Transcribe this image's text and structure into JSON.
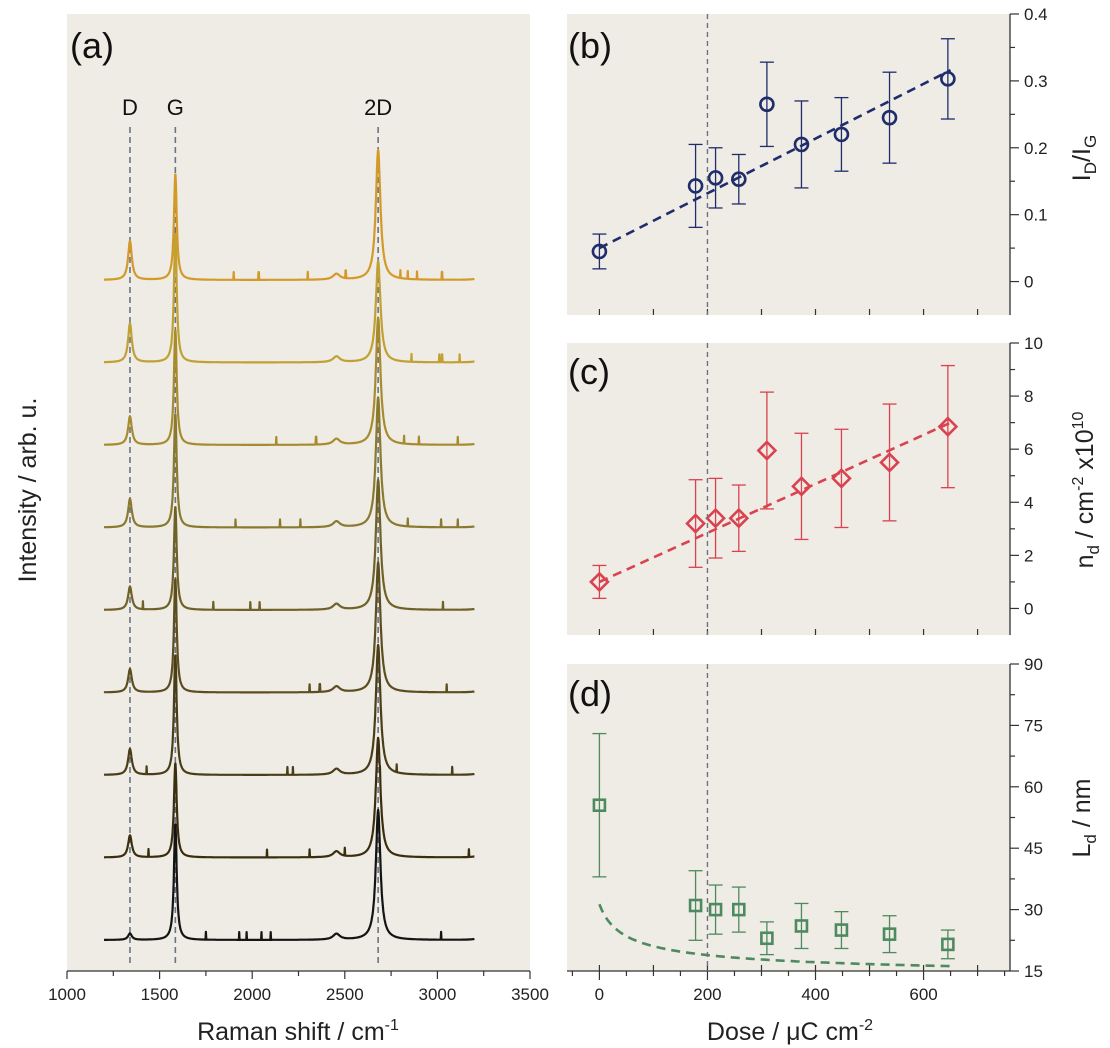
{
  "colors": {
    "panel_background": "#efebe5",
    "b_series": "#1f2d6b",
    "c_series": "#d9434f",
    "d_series": "#4e8a5f",
    "guide_line": "#6a7482"
  },
  "chart_data": [
    {
      "panel": "(a)",
      "type": "line",
      "xlabel": "Raman shift / cm",
      "xlabel_sup": "-1",
      "ylabel": "Intensity / arb. u.",
      "xlim": [
        1000,
        3500
      ],
      "xticks": [
        "1000",
        "1500",
        "2000",
        "2500",
        "3000",
        "3500"
      ],
      "x_range_data": [
        1200,
        3200
      ],
      "peak_labels": [
        {
          "text": "D",
          "x": 1340
        },
        {
          "text": "G",
          "x": 1585
        },
        {
          "text": "2D",
          "x": 2680
        }
      ],
      "stacked": true,
      "series": [
        {
          "color": "#d39a2a",
          "D": 0.3,
          "G": 0.82,
          "twoD": 1.0,
          "spikes": [
            1900,
            2035,
            2300,
            2505,
            2800,
            2840,
            2890,
            3025
          ]
        },
        {
          "color": "#c1a034",
          "D": 0.3,
          "G": 1.0,
          "twoD": 0.78,
          "spikes": [
            2860,
            3010,
            3025,
            3120
          ]
        },
        {
          "color": "#a68c2e",
          "D": 0.22,
          "G": 0.89,
          "twoD": 0.98,
          "spikes": [
            2130,
            2345,
            2820,
            2900,
            3110
          ]
        },
        {
          "color": "#8a7a30",
          "D": 0.22,
          "G": 0.88,
          "twoD": 1.0,
          "spikes": [
            1910,
            2150,
            2260,
            2840,
            3020,
            3110
          ]
        },
        {
          "color": "#6e6228",
          "D": 0.18,
          "G": 0.8,
          "twoD": 1.0,
          "spikes": [
            1410,
            1790,
            1990,
            2040,
            3030
          ]
        },
        {
          "color": "#5c4e20",
          "D": 0.18,
          "G": 0.88,
          "twoD": 1.0,
          "spikes": [
            2310,
            2365,
            3050
          ]
        },
        {
          "color": "#4a3e18",
          "D": 0.2,
          "G": 0.93,
          "twoD": 1.0,
          "spikes": [
            1430,
            2190,
            2220,
            2780,
            3080
          ]
        },
        {
          "color": "#3a2e0f",
          "D": 0.17,
          "G": 0.73,
          "twoD": 0.92,
          "spikes": [
            1440,
            2080,
            2310,
            2500,
            2690,
            3170
          ]
        },
        {
          "color": "#141414",
          "D": 0.05,
          "G": 0.9,
          "twoD": 1.0,
          "spikes": [
            1750,
            1930,
            1970,
            2050,
            2100,
            3020
          ]
        }
      ]
    },
    {
      "panel": "(b)",
      "type": "scatter",
      "ylabel": "I",
      "ylabel_sub1": "D",
      "ylabel_mid": "/I",
      "ylabel_sub2": "G",
      "ylim": [
        -0.05,
        0.4
      ],
      "yticks": [
        "0",
        "0.1",
        "0.2",
        "0.3",
        "0.4"
      ],
      "x": [
        0,
        178,
        215,
        258,
        310,
        374,
        448,
        537,
        645
      ],
      "y": [
        0.045,
        0.143,
        0.155,
        0.153,
        0.265,
        0.205,
        0.22,
        0.245,
        0.303
      ],
      "yerr": [
        0.026,
        0.062,
        0.045,
        0.037,
        0.063,
        0.065,
        0.055,
        0.068,
        0.06
      ],
      "marker": "circle",
      "fit": {
        "kind": "linear",
        "x0": 0,
        "x1": 650,
        "y0": 0.05,
        "y1": 0.316
      }
    },
    {
      "panel": "(c)",
      "type": "scatter",
      "ylabel": "n",
      "ylabel_sub": "d",
      "ylabel_tail": " / cm",
      "ylabel_sup": "-2",
      "ylabel_tail2": " x10",
      "ylabel_sup2": "10",
      "ylim": [
        -1,
        10
      ],
      "yticks": [
        "0",
        "2",
        "4",
        "6",
        "8",
        "10"
      ],
      "x": [
        0,
        178,
        215,
        258,
        310,
        374,
        448,
        537,
        645
      ],
      "y": [
        1.0,
        3.2,
        3.4,
        3.4,
        5.95,
        4.6,
        4.9,
        5.5,
        6.85
      ],
      "yerr": [
        0.62,
        1.65,
        1.5,
        1.25,
        2.2,
        2.0,
        1.85,
        2.2,
        2.3
      ],
      "marker": "diamond",
      "fit": {
        "kind": "linear",
        "x0": 0,
        "x1": 650,
        "y0": 1.0,
        "y1": 7.0
      }
    },
    {
      "panel": "(d)",
      "type": "scatter",
      "xlabel": "Dose / μC cm",
      "xlabel_sup": "-2",
      "xlim": [
        -60,
        760
      ],
      "xticks": [
        "0",
        "200",
        "400",
        "600"
      ],
      "ylabel": "L",
      "ylabel_sub": "d",
      "ylabel_tail": " / nm",
      "ylim": [
        15,
        90
      ],
      "yticks": [
        "15",
        "30",
        "45",
        "60",
        "75",
        "90"
      ],
      "x": [
        0,
        178,
        215,
        258,
        310,
        374,
        448,
        537,
        645
      ],
      "y": [
        55.5,
        31.0,
        30.0,
        30.0,
        23.0,
        26.0,
        25.0,
        24.0,
        21.5
      ],
      "yerr": [
        17.5,
        8.5,
        6.0,
        5.5,
        4.0,
        5.5,
        4.5,
        4.5,
        3.5
      ],
      "marker": "square",
      "fit": {
        "kind": "inverse_sqrt",
        "x0": 0,
        "x1": 650
      }
    }
  ],
  "reference_line": {
    "dose": 200
  }
}
